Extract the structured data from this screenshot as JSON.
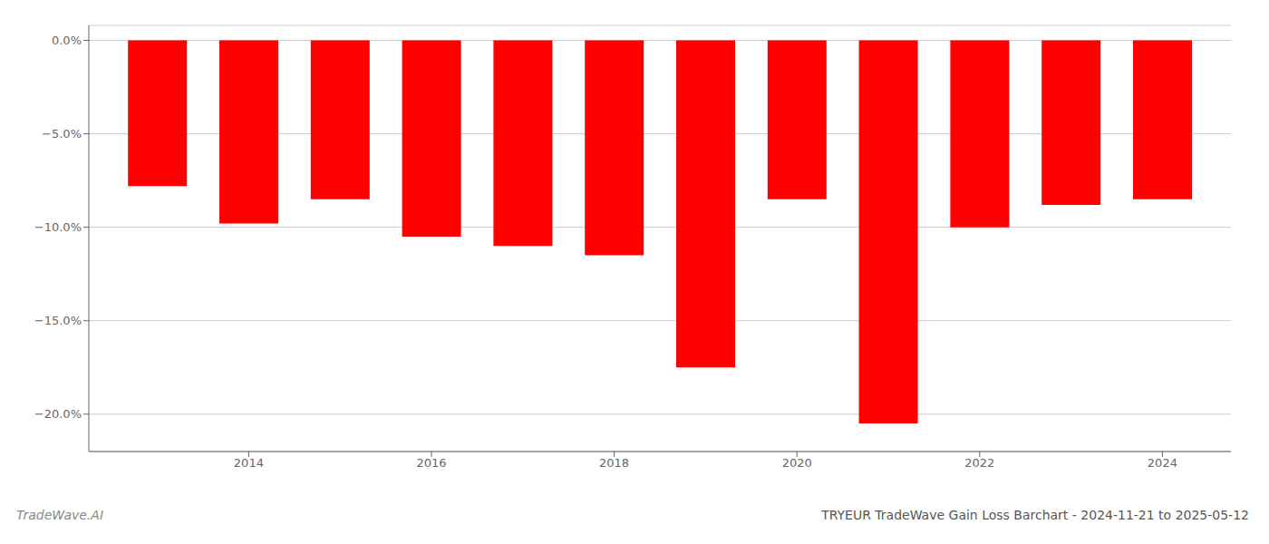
{
  "chart_data": {
    "type": "bar",
    "title": "TRYEUR TradeWave Gain Loss Barchart - 2024-11-21 to 2025-05-12",
    "annotations": [
      "TradeWave.AI"
    ],
    "x": [
      2013,
      2014,
      2015,
      2016,
      2017,
      2018,
      2019,
      2020,
      2021,
      2022,
      2023,
      2024
    ],
    "values": [
      -7.8,
      -9.8,
      -8.5,
      -10.5,
      -11.0,
      -11.5,
      -17.5,
      -8.5,
      -20.5,
      -10.0,
      -8.8,
      -8.5
    ],
    "color": "#ff0000",
    "xlim": [
      2012.25,
      2024.75
    ],
    "xticks": [
      2014,
      2016,
      2018,
      2020,
      2022,
      2024
    ],
    "ylim": [
      -22.0,
      0.8
    ],
    "yticks": [
      {
        "value": 0.0,
        "label": "0.0%"
      },
      {
        "value": -5.0,
        "label": "−5.0%"
      },
      {
        "value": -10.0,
        "label": "−10.0%"
      },
      {
        "value": -15.0,
        "label": "−15.0%"
      },
      {
        "value": -20.0,
        "label": "−20.0%"
      }
    ],
    "grid": true
  }
}
